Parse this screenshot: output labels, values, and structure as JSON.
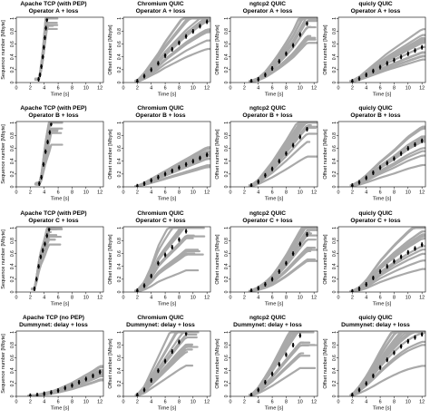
{
  "chart_data": {
    "type": "scatter",
    "x_ticks": [
      0,
      2,
      4,
      6,
      8,
      10,
      12
    ],
    "y_ticks": [
      0,
      0.2,
      0.4,
      0.6,
      0.8,
      1
    ],
    "xlim": [
      0,
      12.5
    ],
    "ylim": [
      0,
      1.02
    ],
    "colors": {
      "trials": "#a9a9a9",
      "median": "#000000"
    },
    "panels": [
      [
        {
          "title": "Apache TCP (with PEP)",
          "subtitle": "Operator A + loss",
          "ylabel": "Sequence number [Mbyte]",
          "xlabel": "Time [s]",
          "t0": 2.9,
          "t_done": 4.4,
          "spread": 0.25,
          "median_x": [
            3.2,
            3.4,
            3.6,
            3.8,
            3.95,
            4.1,
            4.25,
            4.4
          ],
          "median_y": [
            0.05,
            0.12,
            0.25,
            0.4,
            0.55,
            0.7,
            0.85,
            0.98
          ]
        },
        {
          "title": "Chromium QUIC",
          "subtitle": "Operator A + loss",
          "ylabel": "Offset number [Mbyte]",
          "xlabel": "Time [s]",
          "t0": 1.9,
          "t_done": 12.5,
          "spread": 0.6,
          "median_x": [
            2,
            3,
            4,
            5,
            6,
            7,
            8,
            9,
            10,
            11,
            12
          ],
          "median_y": [
            0.02,
            0.1,
            0.2,
            0.3,
            0.42,
            0.52,
            0.62,
            0.72,
            0.8,
            0.88,
            0.95
          ]
        },
        {
          "title": "ngtcp2 QUIC",
          "subtitle": "Operator A + loss",
          "ylabel": "Offset number [Mbyte]",
          "xlabel": "Time [s]",
          "t0": 2.9,
          "t_done": 11.5,
          "spread": 0.5,
          "median_x": [
            3,
            4,
            5,
            6,
            7,
            8,
            9,
            10,
            11
          ],
          "median_y": [
            0.02,
            0.05,
            0.12,
            0.22,
            0.33,
            0.45,
            0.58,
            0.75,
            0.92
          ]
        },
        {
          "title": "quicly QUIC",
          "subtitle": "Operator A + loss",
          "ylabel": "Offset number [Mbyte]",
          "xlabel": "Time [s]",
          "t0": 1.9,
          "t_done": 12.5,
          "spread": 0.6,
          "median_x": [
            2,
            3,
            4,
            5,
            6,
            7,
            8,
            9,
            10,
            11,
            12
          ],
          "median_y": [
            0.02,
            0.06,
            0.12,
            0.18,
            0.24,
            0.3,
            0.35,
            0.4,
            0.45,
            0.5,
            0.55
          ]
        }
      ],
      [
        {
          "title": "Apache TCP (with PEP)",
          "subtitle": "Operator B + loss",
          "ylabel": "Sequence number [Mbyte]",
          "xlabel": "Time [s]",
          "t0": 2.9,
          "t_done": 5.0,
          "spread": 0.35,
          "median_x": [
            3.3,
            3.6,
            3.9,
            4.2,
            4.5,
            4.8,
            5.0
          ],
          "median_y": [
            0.05,
            0.15,
            0.35,
            0.55,
            0.7,
            0.85,
            0.98
          ]
        },
        {
          "title": "Chromium QUIC",
          "subtitle": "Operator B + loss",
          "ylabel": "Offset number [Mbyte]",
          "xlabel": "Time [s]",
          "t0": 1.9,
          "t_done": 12.5,
          "spread": 0.45,
          "median_x": [
            2,
            3,
            4,
            5,
            6,
            7,
            8,
            9,
            10,
            11,
            12
          ],
          "median_y": [
            0.01,
            0.05,
            0.1,
            0.15,
            0.2,
            0.25,
            0.3,
            0.35,
            0.4,
            0.45,
            0.5
          ]
        },
        {
          "title": "ngtcp2 QUIC",
          "subtitle": "Operator B + loss",
          "ylabel": "Offset number [Mbyte]",
          "xlabel": "Time [s]",
          "t0": 2.9,
          "t_done": 11.5,
          "spread": 0.5,
          "median_x": [
            3,
            4,
            5,
            6,
            7,
            8,
            9,
            10,
            11
          ],
          "median_y": [
            0.02,
            0.08,
            0.18,
            0.28,
            0.4,
            0.52,
            0.65,
            0.78,
            0.9
          ]
        },
        {
          "title": "quicly QUIC",
          "subtitle": "Operator B + loss",
          "ylabel": "Offset number [Mbyte]",
          "xlabel": "Time [s]",
          "t0": 1.9,
          "t_done": 12.5,
          "spread": 0.6,
          "median_x": [
            2,
            3,
            4,
            5,
            6,
            7,
            8,
            9,
            10,
            11,
            12
          ],
          "median_y": [
            0.02,
            0.07,
            0.14,
            0.22,
            0.3,
            0.37,
            0.44,
            0.52,
            0.6,
            0.66,
            0.72
          ]
        }
      ],
      [
        {
          "title": "Apache TCP (with PEP)",
          "subtitle": "Operator C + loss",
          "ylabel": "Sequence number [Mbyte]",
          "xlabel": "Time [s]",
          "t0": 2.4,
          "t_done": 4.8,
          "spread": 0.3,
          "median_x": [
            2.6,
            2.9,
            3.2,
            3.5,
            3.8,
            4.1,
            4.4,
            4.7
          ],
          "median_y": [
            0.05,
            0.2,
            0.4,
            0.55,
            0.65,
            0.75,
            0.88,
            0.98
          ]
        },
        {
          "title": "Chromium QUIC",
          "subtitle": "Operator C + loss",
          "ylabel": "Offset number [Mbyte]",
          "xlabel": "Time [s]",
          "t0": 1.9,
          "t_done": 10.0,
          "spread": 0.65,
          "median_x": [
            2,
            3,
            4,
            5,
            6,
            7,
            8,
            9
          ],
          "median_y": [
            0.02,
            0.1,
            0.25,
            0.45,
            0.58,
            0.7,
            0.82,
            0.95
          ]
        },
        {
          "title": "ngtcp2 QUIC",
          "subtitle": "Operator C + loss",
          "ylabel": "Offset number [Mbyte]",
          "xlabel": "Time [s]",
          "t0": 2.9,
          "t_done": 11.5,
          "spread": 0.5,
          "median_x": [
            3,
            4,
            5,
            6,
            7,
            8,
            9,
            10,
            11
          ],
          "median_y": [
            0.02,
            0.06,
            0.12,
            0.2,
            0.32,
            0.45,
            0.6,
            0.75,
            0.9
          ]
        },
        {
          "title": "quicly QUIC",
          "subtitle": "Operator C + loss",
          "ylabel": "Offset number [Mbyte]",
          "xlabel": "Time [s]",
          "t0": 1.9,
          "t_done": 12.5,
          "spread": 0.6,
          "median_x": [
            2,
            3,
            4,
            5,
            6,
            7,
            8,
            9,
            10,
            11,
            12
          ],
          "median_y": [
            0.01,
            0.05,
            0.12,
            0.22,
            0.32,
            0.4,
            0.48,
            0.55,
            0.62,
            0.68,
            0.74
          ]
        }
      ],
      [
        {
          "title": "Apache TCP (no PEP)",
          "subtitle": "Dummynet: delay + loss",
          "ylabel": "Sequence number [Mbyte]",
          "xlabel": "Time [s]",
          "t0": 1.9,
          "t_done": 12.5,
          "spread": 0.45,
          "median_x": [
            2,
            3,
            4,
            5,
            6,
            7,
            8,
            9,
            10,
            11,
            12
          ],
          "median_y": [
            0.01,
            0.02,
            0.04,
            0.06,
            0.09,
            0.13,
            0.17,
            0.22,
            0.27,
            0.32,
            0.38
          ]
        },
        {
          "title": "Chromium QUIC",
          "subtitle": "Dummynet: delay + loss",
          "ylabel": "Offset number [Mbyte]",
          "xlabel": "Time [s]",
          "t0": 1.9,
          "t_done": 9.0,
          "spread": 0.55,
          "median_x": [
            2,
            3,
            4,
            5,
            6,
            7,
            8,
            9
          ],
          "median_y": [
            0.02,
            0.1,
            0.25,
            0.4,
            0.55,
            0.7,
            0.85,
            0.98
          ]
        },
        {
          "title": "ngtcp2 QUIC",
          "subtitle": "Dummynet: delay + loss",
          "ylabel": "Offset number [Mbyte]",
          "xlabel": "Time [s]",
          "t0": 2.9,
          "t_done": 10.5,
          "spread": 0.55,
          "median_x": [
            3,
            4,
            5,
            6,
            7,
            8,
            9,
            10
          ],
          "median_y": [
            0.02,
            0.1,
            0.22,
            0.35,
            0.5,
            0.65,
            0.8,
            0.95
          ]
        },
        {
          "title": "quicly QUIC",
          "subtitle": "Dummynet: delay + loss",
          "ylabel": "Offset number [Mbyte]",
          "xlabel": "Time [s]",
          "t0": 1.9,
          "t_done": 12.5,
          "spread": 0.6,
          "median_x": [
            2,
            3,
            4,
            5,
            6,
            7,
            8,
            9,
            10,
            11,
            12
          ],
          "median_y": [
            0.02,
            0.1,
            0.2,
            0.32,
            0.45,
            0.57,
            0.68,
            0.78,
            0.86,
            0.92,
            0.97
          ]
        }
      ]
    ]
  }
}
